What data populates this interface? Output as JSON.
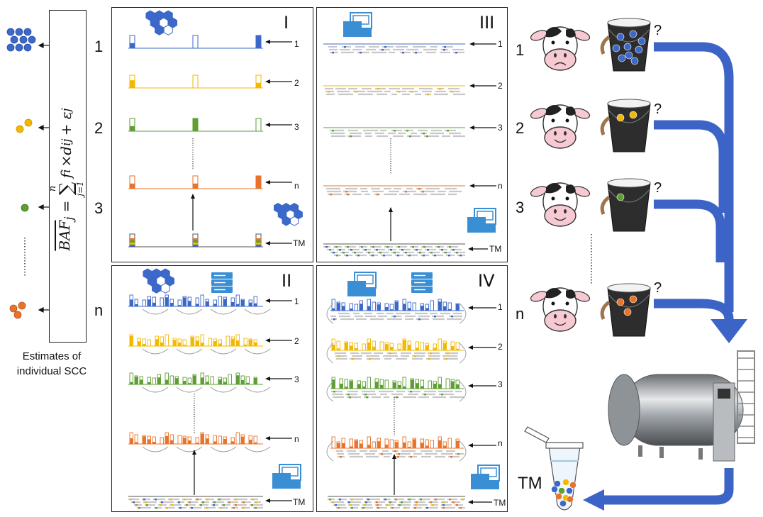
{
  "formula": {
    "text": "BÂF_j = Σ_{j=1}^{n} f_i × d_ij + ε_j",
    "lhs": "BAF",
    "sub_j": "j",
    "sum": "∑",
    "sum_top": "n",
    "sum_bottom": "j=1",
    "rhs": "f",
    "rhs_i": "i",
    "times": "×d",
    "rhs_ij": "ij",
    "plus": "+ ε",
    "rhs_j": "j"
  },
  "caption": {
    "line1": "Estimates of",
    "line2": "individual SCC"
  },
  "left_labels": [
    "1",
    "2",
    "3",
    "n"
  ],
  "panels": {
    "I": {
      "label": "I",
      "rows": [
        "1",
        "2",
        "3",
        "n"
      ],
      "pool": "TM"
    },
    "II": {
      "label": "II",
      "rows": [
        "1",
        "2",
        "3",
        "n"
      ],
      "pool": "TM"
    },
    "III": {
      "label": "III",
      "rows": [
        "1",
        "2",
        "3",
        "n"
      ],
      "pool": "TM"
    },
    "IV": {
      "label": "IV",
      "rows": [
        "1",
        "2",
        "3",
        "n"
      ],
      "pool": "TM"
    }
  },
  "cows": {
    "labels": [
      "1",
      "2",
      "3",
      "n"
    ],
    "question": "?"
  },
  "tank_label": "TM",
  "colors": {
    "blue": "#3b68c9",
    "yellow": "#f3b800",
    "green": "#5e9e33",
    "orange": "#e8732b",
    "arrow": "#3c63c6",
    "grey": "#c8c8c8"
  }
}
